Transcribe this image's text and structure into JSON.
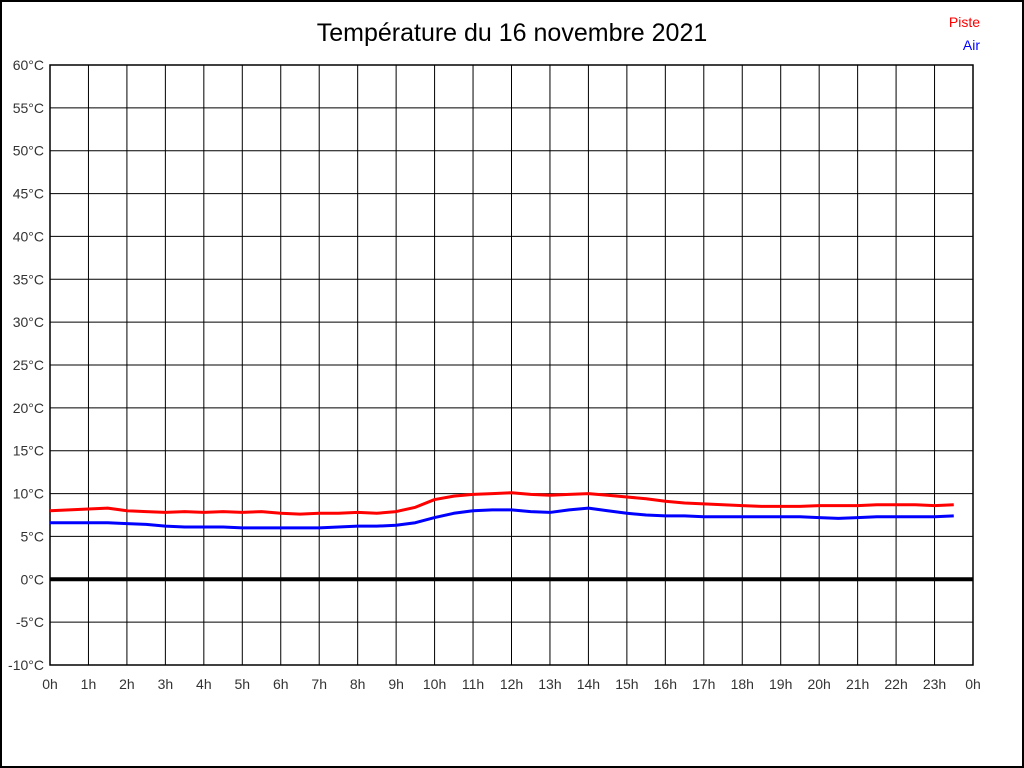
{
  "chart": {
    "title": "Température du 16 novembre 2021",
    "legend": [
      {
        "label": "Piste",
        "color": "#ff0000"
      },
      {
        "label": "Air",
        "color": "#0000ff"
      }
    ]
  },
  "chart_data": {
    "type": "line",
    "title": "Température du 16 novembre 2021",
    "xlabel": "",
    "ylabel": "",
    "xlim": [
      0,
      24
    ],
    "ylim": [
      -10,
      60
    ],
    "y_tick_step": 5,
    "grid": true,
    "zero_line": true,
    "legend_position": "top-right",
    "x_unit": "hours",
    "y_unit": "°C",
    "x_tick_labels": [
      "0h",
      "1h",
      "2h",
      "3h",
      "4h",
      "5h",
      "6h",
      "7h",
      "8h",
      "9h",
      "10h",
      "11h",
      "12h",
      "13h",
      "14h",
      "15h",
      "16h",
      "17h",
      "18h",
      "19h",
      "20h",
      "21h",
      "22h",
      "23h",
      "0h"
    ],
    "y_tick_labels": [
      "60°C",
      "55°C",
      "50°C",
      "45°C",
      "40°C",
      "35°C",
      "30°C",
      "25°C",
      "20°C",
      "15°C",
      "10°C",
      "5°C",
      "0°C",
      "-5°C",
      "-10°C"
    ],
    "x": [
      0,
      0.5,
      1,
      1.5,
      2,
      2.5,
      3,
      3.5,
      4,
      4.5,
      5,
      5.5,
      6,
      6.5,
      7,
      7.5,
      8,
      8.5,
      9,
      9.5,
      10,
      10.5,
      11,
      11.5,
      12,
      12.5,
      13,
      13.5,
      14,
      14.5,
      15,
      15.5,
      16,
      16.5,
      17,
      17.5,
      18,
      18.5,
      19,
      19.5,
      20,
      20.5,
      21,
      21.5,
      22,
      22.5,
      23,
      23.5
    ],
    "series": [
      {
        "name": "Piste",
        "color": "#ff0000",
        "values": [
          8.0,
          8.1,
          8.2,
          8.3,
          8.0,
          7.9,
          7.8,
          7.9,
          7.8,
          7.9,
          7.8,
          7.9,
          7.7,
          7.6,
          7.7,
          7.7,
          7.8,
          7.7,
          7.9,
          8.4,
          9.3,
          9.7,
          9.9,
          10.0,
          10.1,
          9.9,
          9.8,
          9.9,
          10.0,
          9.8,
          9.6,
          9.4,
          9.1,
          8.9,
          8.8,
          8.7,
          8.6,
          8.5,
          8.5,
          8.5,
          8.6,
          8.6,
          8.6,
          8.7,
          8.7,
          8.7,
          8.6,
          8.7
        ]
      },
      {
        "name": "Air",
        "color": "#0000ff",
        "values": [
          6.6,
          6.6,
          6.6,
          6.6,
          6.5,
          6.4,
          6.2,
          6.1,
          6.1,
          6.1,
          6.0,
          6.0,
          6.0,
          6.0,
          6.0,
          6.1,
          6.2,
          6.2,
          6.3,
          6.6,
          7.2,
          7.7,
          8.0,
          8.1,
          8.1,
          7.9,
          7.8,
          8.1,
          8.3,
          8.0,
          7.7,
          7.5,
          7.4,
          7.4,
          7.3,
          7.3,
          7.3,
          7.3,
          7.3,
          7.3,
          7.2,
          7.1,
          7.2,
          7.3,
          7.3,
          7.3,
          7.3,
          7.4
        ]
      }
    ]
  },
  "style": {
    "background": "#ffffff",
    "grid_color": "#000000",
    "frame_color": "#000000",
    "zero_line_color": "#000000",
    "tick_text_color": "#333333",
    "title_color": "#000000"
  }
}
